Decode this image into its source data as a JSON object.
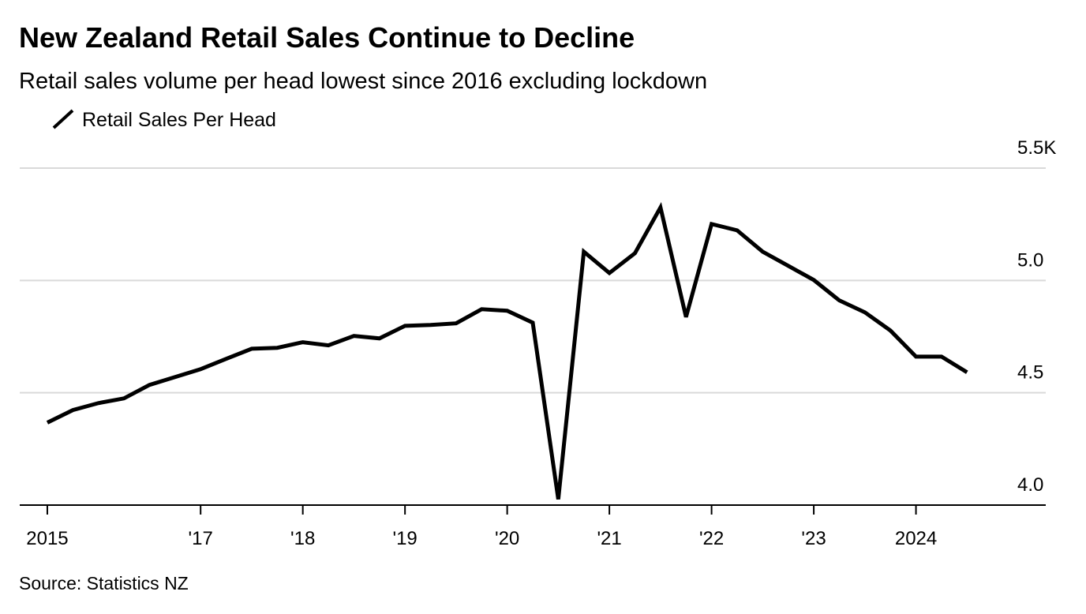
{
  "chart_data": {
    "type": "line",
    "title": "New Zealand Retail Sales Continue to Decline",
    "subtitle": "Retail sales volume per head lowest since 2016 excluding lockdown",
    "source": "Source: Statistics NZ",
    "x": [
      2015.5,
      2015.75,
      2016,
      2016.25,
      2016.5,
      2016.75,
      2017,
      2017.25,
      2017.5,
      2017.75,
      2018,
      2018.25,
      2018.5,
      2018.75,
      2019,
      2019.25,
      2019.5,
      2019.75,
      2020,
      2020.25,
      2020.5,
      2020.75,
      2021,
      2021.25,
      2021.5,
      2021.75,
      2022,
      2022.25,
      2022.5,
      2022.75,
      2023,
      2023.25,
      2023.5,
      2023.75,
      2024,
      2024.25,
      2024.5
    ],
    "series": [
      {
        "name": "Retail Sales Per Head",
        "color": "#000000",
        "values": [
          4.367,
          4.423,
          4.454,
          4.475,
          4.535,
          4.57,
          4.605,
          4.651,
          4.696,
          4.7,
          4.725,
          4.711,
          4.753,
          4.742,
          4.798,
          4.802,
          4.809,
          4.872,
          4.865,
          4.812,
          4.026,
          5.128,
          5.033,
          5.121,
          5.325,
          4.837,
          5.251,
          5.223,
          5.128,
          5.065,
          5.002,
          4.911,
          4.858,
          4.777,
          4.661,
          4.661,
          4.591
        ]
      }
    ],
    "xlim": [
      2015.23,
      2025.27
    ],
    "xticks": [
      {
        "value": 2015.5,
        "label": "2015"
      },
      {
        "value": 2017,
        "label": "'17"
      },
      {
        "value": 2018,
        "label": "'18"
      },
      {
        "value": 2019,
        "label": "'19"
      },
      {
        "value": 2020,
        "label": "'20"
      },
      {
        "value": 2021,
        "label": "'21"
      },
      {
        "value": 2022,
        "label": "'22"
      },
      {
        "value": 2023,
        "label": "'23"
      },
      2024
    ],
    "ylim": [
      4,
      5.5
    ],
    "yticks": [
      {
        "value": 4,
        "label": "4.0"
      },
      {
        "value": 4.5,
        "label": "4.5"
      },
      {
        "value": 5,
        "label": "5.0"
      },
      {
        "value": 5.5,
        "label": "5.5K"
      }
    ],
    "grid": true
  }
}
